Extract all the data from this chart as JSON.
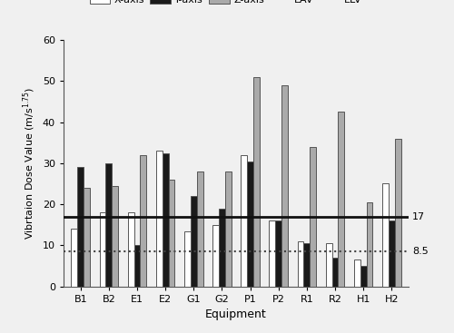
{
  "categories": [
    "B1",
    "B2",
    "E1",
    "E2",
    "G1",
    "G2",
    "P1",
    "P2",
    "R1",
    "R2",
    "H1",
    "H2"
  ],
  "x_values": [
    14,
    18,
    18,
    33,
    13.5,
    15,
    32,
    16,
    11,
    10.5,
    6.5,
    25
  ],
  "y_values": [
    29,
    30,
    10,
    32.5,
    22,
    19,
    30.5,
    16,
    10.5,
    7,
    5,
    16
  ],
  "z_values": [
    24,
    24.5,
    32,
    26,
    28,
    28,
    51,
    49,
    34,
    42.5,
    20.5,
    36
  ],
  "EAV": 8.5,
  "ELV": 17,
  "bar_width": 0.22,
  "ylim": [
    0,
    60
  ],
  "yticks": [
    0,
    10,
    20,
    30,
    40,
    50,
    60
  ],
  "xlabel": "Equipment",
  "x_color": "#ffffff",
  "x_edge": "#555555",
  "y_color": "#1a1a1a",
  "z_color": "#aaaaaa",
  "eav_color": "#444444",
  "elv_color": "#111111",
  "right_label_17": "17",
  "right_label_85": "8.5",
  "bg_color": "#f0f0f0"
}
